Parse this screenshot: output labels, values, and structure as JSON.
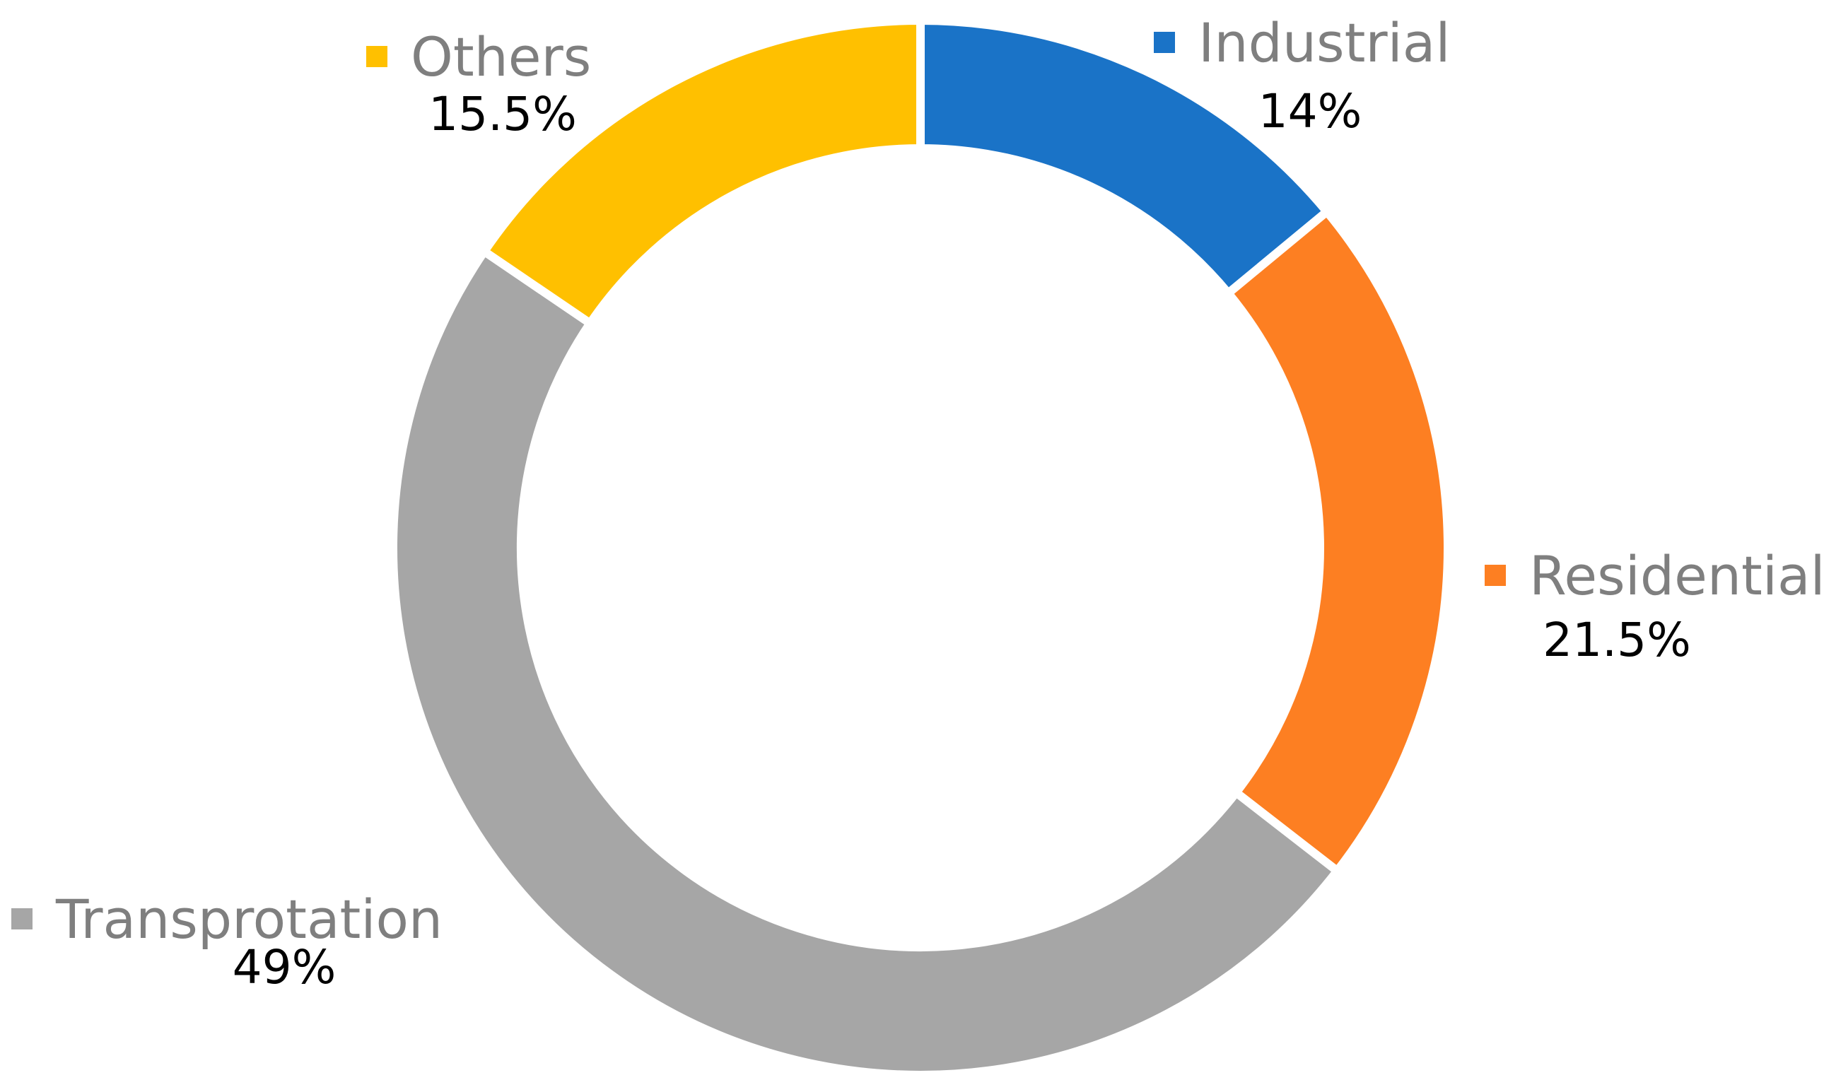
{
  "chart_data": {
    "type": "pie",
    "variant": "donut",
    "start_angle_deg": 0,
    "direction": "clockwise",
    "slices": [
      {
        "category": "Industrial",
        "value": 14,
        "label": "14%",
        "color": "#1a73c7"
      },
      {
        "category": "Residential",
        "value": 21.5,
        "label": "21.5%",
        "color": "#fd7f22"
      },
      {
        "category": "Transprotation",
        "value": 49,
        "label": "49%",
        "color": "#a6a6a6"
      },
      {
        "category": "Others",
        "value": 15.5,
        "label": "15.5%",
        "color": "#ffc000"
      }
    ],
    "legend_color": "#7f7f7f",
    "label_color": "#000000",
    "separator_color": "#ffffff"
  }
}
